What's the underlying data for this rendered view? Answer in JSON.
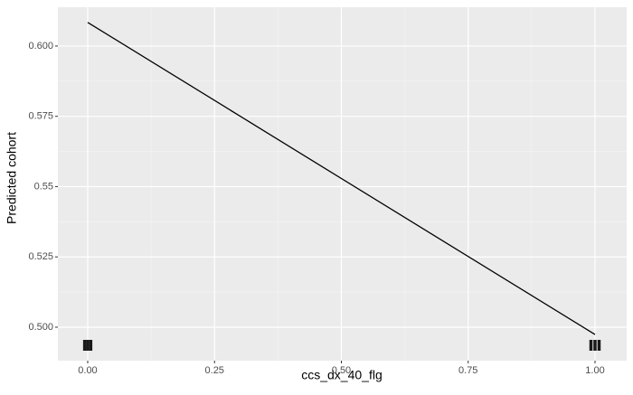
{
  "chart_data": {
    "type": "line",
    "x_label": "ccs_dx_40_flg",
    "y_label": "Predicted cohort",
    "x": [
      0,
      1
    ],
    "series": [
      {
        "color": "#000000",
        "values": [
          0.6084,
          0.4974
        ]
      }
    ],
    "rug": {
      "x": [
        -0.006,
        0,
        0.006,
        0.992,
        1.0,
        1.008
      ],
      "color": "#1a1a1a"
    },
    "xlim": [
      -0.0588,
      1.0624
    ],
    "ylim": [
      0.4881,
      0.6138
    ],
    "xticks": [
      {
        "value": 0,
        "label": "0.00"
      },
      0.25,
      {
        "value": 0.5,
        "label": "0.50"
      },
      0.75,
      {
        "value": 1,
        "label": "1.00"
      }
    ],
    "yticks": [
      {
        "value": 0.5,
        "label": "0.500"
      },
      0.525,
      0.55,
      0.575,
      {
        "value": 0.6,
        "label": "0.600"
      }
    ],
    "xminor": [
      0.125,
      0.375,
      0.625,
      0.875
    ],
    "yminor": [
      0.5125,
      0.5375,
      0.5625,
      0.5875
    ],
    "grid": true,
    "panel_color": "#ebebeb"
  }
}
